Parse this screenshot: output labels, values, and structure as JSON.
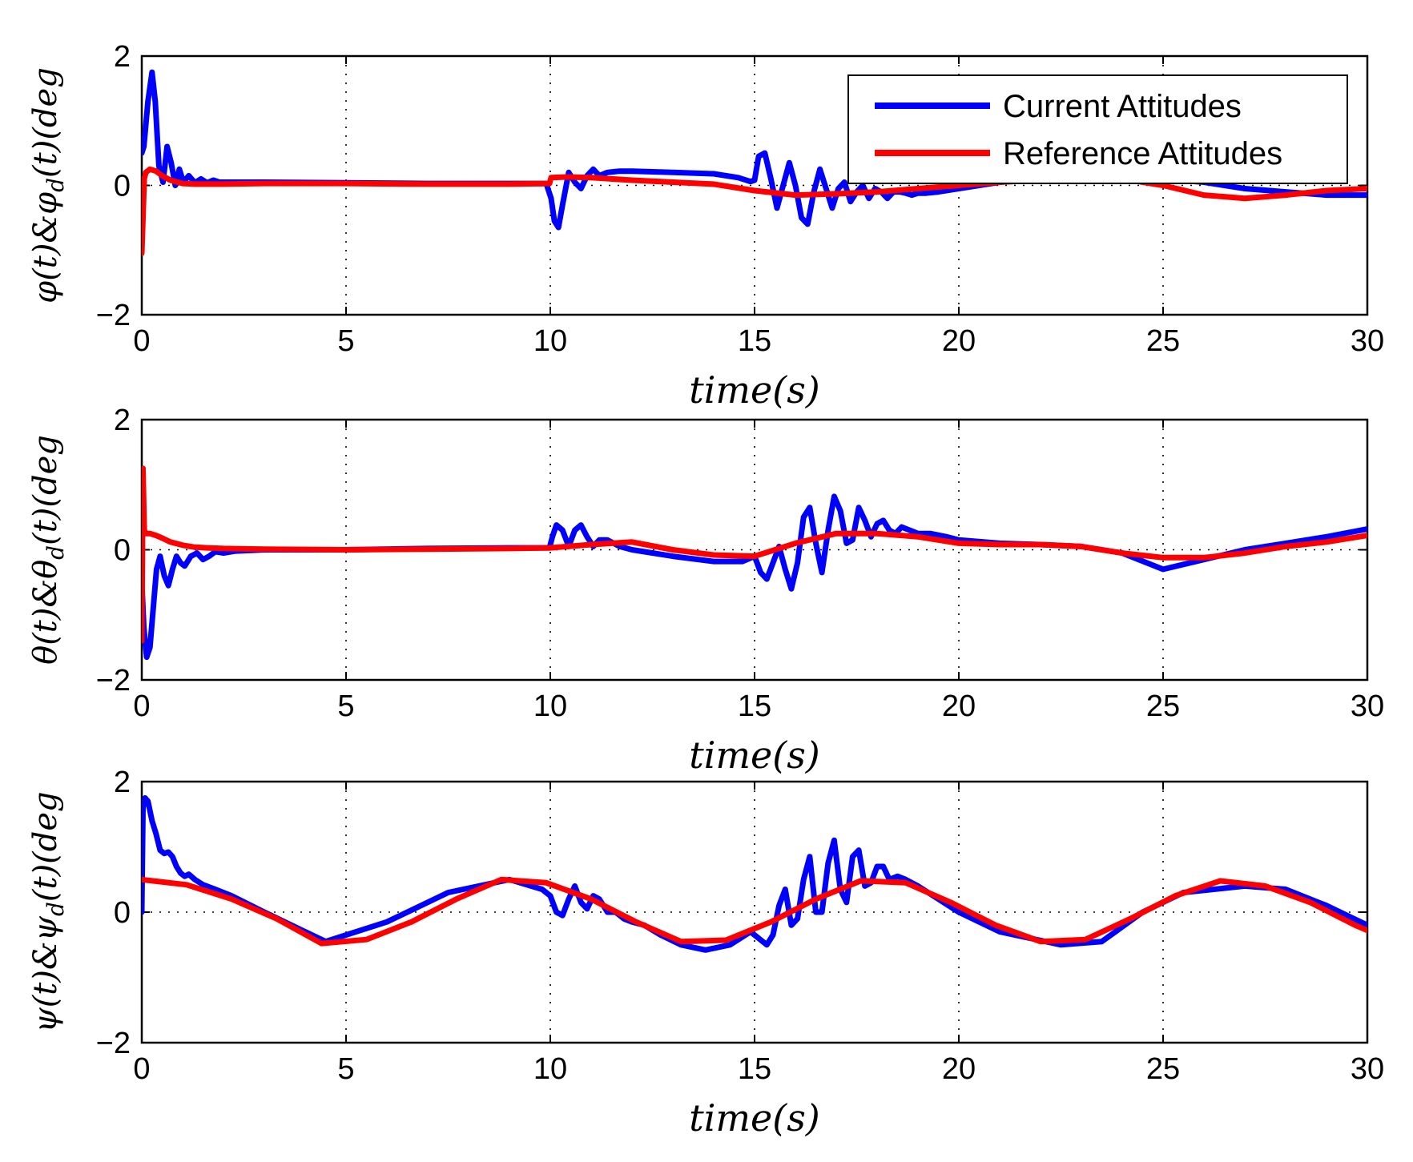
{
  "colors": {
    "current": "#0000ff",
    "reference": "#ff0000"
  },
  "legend": {
    "placement": "top-right",
    "entries": [
      "Current Attitudes",
      "Reference Attitudes"
    ]
  },
  "chart_data": [
    {
      "type": "line",
      "ylabel": "φ(t)&φ_d(t)(deg)",
      "ylabel_main": "φ(t)&φ",
      "ylabel_sub": "d",
      "ylabel_tail": "(t)(deg",
      "xlabel": "time(s)",
      "xlim": [
        0,
        30
      ],
      "ylim": [
        -2,
        2
      ],
      "xticks": [
        0,
        5,
        10,
        15,
        20,
        25,
        30
      ],
      "xtick_labels": [
        "0",
        "5",
        "10",
        "15",
        "20",
        "25",
        "30"
      ],
      "yticks": [
        -2,
        0,
        2
      ],
      "ytick_labels": [
        "−2",
        "0",
        "2"
      ],
      "series": [
        {
          "name": "Current Attitudes",
          "color": "#0000ff",
          "x": [
            0,
            0.05,
            0.15,
            0.25,
            0.33,
            0.42,
            0.52,
            0.62,
            0.72,
            0.82,
            0.92,
            1.02,
            1.15,
            1.3,
            1.45,
            1.6,
            1.75,
            1.9,
            2.1,
            2.4,
            3,
            5,
            7,
            9,
            9.9,
            10.02,
            10.1,
            10.2,
            10.3,
            10.45,
            10.6,
            10.75,
            10.9,
            11.05,
            11.2,
            11.4,
            11.7,
            12,
            13,
            14,
            14.6,
            14.9,
            15.0,
            15.1,
            15.25,
            15.4,
            15.55,
            15.7,
            15.85,
            16.0,
            16.15,
            16.3,
            16.45,
            16.6,
            16.75,
            16.9,
            17.05,
            17.2,
            17.35,
            17.5,
            17.65,
            17.8,
            17.95,
            18.1,
            18.25,
            18.4,
            18.55,
            18.7,
            18.85,
            19.0,
            19.2,
            19.5,
            20,
            21,
            22,
            23,
            24,
            25,
            26,
            27,
            28,
            29,
            30
          ],
          "values": [
            0.5,
            0.6,
            1.3,
            1.75,
            1.3,
            0.3,
            0.05,
            0.6,
            0.35,
            0.0,
            0.25,
            0.05,
            0.15,
            0.04,
            0.1,
            0.04,
            0.08,
            0.05,
            0.05,
            0.05,
            0.05,
            0.04,
            0.03,
            0.03,
            0.03,
            -0.2,
            -0.55,
            -0.65,
            -0.3,
            0.2,
            0.05,
            -0.05,
            0.15,
            0.25,
            0.15,
            0.2,
            0.22,
            0.22,
            0.2,
            0.18,
            0.12,
            0.06,
            0.08,
            0.45,
            0.5,
            0.1,
            -0.35,
            0.0,
            0.35,
            0.0,
            -0.5,
            -0.6,
            -0.1,
            0.25,
            -0.05,
            -0.35,
            -0.05,
            0.05,
            -0.25,
            -0.1,
            0.0,
            -0.2,
            -0.05,
            -0.1,
            -0.2,
            -0.1,
            -0.1,
            -0.12,
            -0.15,
            -0.12,
            -0.12,
            -0.1,
            -0.05,
            0.05,
            0.1,
            0.12,
            0.12,
            0.1,
            0.05,
            -0.05,
            -0.1,
            -0.15,
            -0.15
          ]
        },
        {
          "name": "Reference Attitudes",
          "color": "#ff0000",
          "x": [
            0,
            0.03,
            0.06,
            0.1,
            0.2,
            0.35,
            0.5,
            0.7,
            1.0,
            1.3,
            1.6,
            2,
            3,
            5,
            7,
            9,
            9.98,
            10.02,
            10.4,
            11,
            12,
            13,
            14,
            15,
            16,
            17,
            18,
            19,
            20,
            21,
            22,
            23,
            24,
            25,
            26,
            27,
            28,
            29,
            30
          ],
          "values": [
            -1.05,
            -0.5,
            0.1,
            0.2,
            0.25,
            0.22,
            0.15,
            0.08,
            0.03,
            0.02,
            0.02,
            0.02,
            0.03,
            0.03,
            0.02,
            0.02,
            0.03,
            0.12,
            0.13,
            0.12,
            0.08,
            0.05,
            0.02,
            -0.08,
            -0.15,
            -0.13,
            -0.1,
            -0.05,
            0.0,
            0.05,
            0.08,
            0.1,
            0.1,
            0.0,
            -0.15,
            -0.2,
            -0.15,
            -0.08,
            -0.05
          ]
        }
      ]
    },
    {
      "type": "line",
      "ylabel": "θ(t)&θ_d(t)(deg)",
      "ylabel_main": "θ(t)&θ",
      "ylabel_sub": "d",
      "ylabel_tail": "(t)(deg",
      "xlabel": "time(s)",
      "xlim": [
        0,
        30
      ],
      "ylim": [
        -2,
        2
      ],
      "xticks": [
        0,
        5,
        10,
        15,
        20,
        25,
        30
      ],
      "xtick_labels": [
        "0",
        "5",
        "10",
        "15",
        "20",
        "25",
        "30"
      ],
      "yticks": [
        -2,
        0,
        2
      ],
      "ytick_labels": [
        "−2",
        "0",
        "2"
      ],
      "series": [
        {
          "name": "Current Attitudes",
          "color": "#0000ff",
          "x": [
            0,
            0.05,
            0.12,
            0.2,
            0.28,
            0.36,
            0.45,
            0.55,
            0.65,
            0.75,
            0.85,
            0.95,
            1.05,
            1.2,
            1.35,
            1.5,
            1.65,
            1.8,
            2.0,
            2.3,
            3,
            5,
            7,
            9,
            9.98,
            10.05,
            10.15,
            10.3,
            10.45,
            10.6,
            10.75,
            10.9,
            11.05,
            11.2,
            11.4,
            11.7,
            12,
            13,
            14,
            14.7,
            15.0,
            15.15,
            15.3,
            15.45,
            15.6,
            15.75,
            15.9,
            16.05,
            16.2,
            16.35,
            16.5,
            16.65,
            16.8,
            16.95,
            17.1,
            17.25,
            17.4,
            17.55,
            17.7,
            17.85,
            18.0,
            18.15,
            18.3,
            18.45,
            18.6,
            18.8,
            19.0,
            19.3,
            19.7,
            20,
            21,
            22,
            23,
            24,
            25,
            26,
            27,
            28,
            29,
            30
          ],
          "values": [
            -0.5,
            -1.2,
            -1.65,
            -1.5,
            -0.9,
            -0.3,
            -0.1,
            -0.4,
            -0.55,
            -0.3,
            -0.1,
            -0.2,
            -0.25,
            -0.1,
            -0.05,
            -0.15,
            -0.1,
            -0.03,
            -0.05,
            -0.02,
            0.0,
            0.0,
            0.02,
            0.03,
            0.03,
            0.2,
            0.38,
            0.3,
            0.05,
            0.3,
            0.38,
            0.2,
            0.05,
            0.15,
            0.15,
            0.05,
            0.0,
            -0.1,
            -0.18,
            -0.18,
            -0.1,
            -0.35,
            -0.45,
            -0.2,
            0.05,
            -0.3,
            -0.6,
            -0.2,
            0.5,
            0.65,
            0.1,
            -0.35,
            0.3,
            0.82,
            0.6,
            0.1,
            0.15,
            0.65,
            0.45,
            0.2,
            0.4,
            0.45,
            0.3,
            0.25,
            0.35,
            0.3,
            0.25,
            0.25,
            0.2,
            0.15,
            0.1,
            0.08,
            0.05,
            -0.05,
            -0.3,
            -0.15,
            0.0,
            0.1,
            0.2,
            0.32
          ]
        },
        {
          "name": "Reference Attitudes",
          "color": "#ff0000",
          "x": [
            0,
            0.03,
            0.06,
            0.1,
            0.2,
            0.35,
            0.5,
            0.7,
            1.0,
            1.3,
            1.6,
            2,
            3,
            5,
            7,
            9,
            10,
            11,
            12,
            13,
            14,
            15,
            16,
            17,
            18,
            19,
            20,
            21,
            22,
            23,
            24,
            25,
            26,
            27,
            28,
            29,
            30
          ],
          "values": [
            -1.4,
            1.25,
            0.3,
            0.25,
            0.25,
            0.22,
            0.18,
            0.12,
            0.07,
            0.04,
            0.03,
            0.02,
            0.01,
            0.0,
            0.01,
            0.02,
            0.03,
            0.08,
            0.12,
            0.0,
            -0.08,
            -0.1,
            0.1,
            0.25,
            0.25,
            0.2,
            0.1,
            0.08,
            0.08,
            0.05,
            -0.05,
            -0.12,
            -0.12,
            -0.05,
            0.05,
            0.12,
            0.22
          ]
        }
      ]
    },
    {
      "type": "line",
      "ylabel": "ψ(t)&ψ_d(t)(deg)",
      "ylabel_main": "ψ(t)&ψ",
      "ylabel_sub": "d",
      "ylabel_tail": "(t)(deg",
      "xlabel": "time(s)",
      "xlim": [
        0,
        30
      ],
      "ylim": [
        -2,
        2
      ],
      "xticks": [
        0,
        5,
        10,
        15,
        20,
        25,
        30
      ],
      "xtick_labels": [
        "0",
        "5",
        "10",
        "15",
        "20",
        "25",
        "30"
      ],
      "yticks": [
        -2,
        0,
        2
      ],
      "ytick_labels": [
        "−2",
        "0",
        "2"
      ],
      "series": [
        {
          "name": "Current Attitudes",
          "color": "#0000ff",
          "x": [
            0,
            0.03,
            0.08,
            0.15,
            0.25,
            0.35,
            0.45,
            0.55,
            0.65,
            0.75,
            0.85,
            0.95,
            1.05,
            1.15,
            1.3,
            1.5,
            1.8,
            2.2,
            3,
            4.5,
            6,
            7.5,
            9,
            9.8,
            10.0,
            10.15,
            10.3,
            10.45,
            10.6,
            10.75,
            10.9,
            11.05,
            11.2,
            11.4,
            11.6,
            11.8,
            12.0,
            12.3,
            12.7,
            13.2,
            13.8,
            14.4,
            14.9,
            15.1,
            15.3,
            15.45,
            15.6,
            15.75,
            15.9,
            16.05,
            16.2,
            16.35,
            16.5,
            16.65,
            16.8,
            16.95,
            17.1,
            17.25,
            17.4,
            17.55,
            17.7,
            17.85,
            18.0,
            18.15,
            18.3,
            18.5,
            18.7,
            19.0,
            19.5,
            20,
            21,
            22.5,
            23.5,
            24.5,
            25.5,
            27,
            28,
            29,
            30
          ],
          "values": [
            0.0,
            1.6,
            1.75,
            1.7,
            1.4,
            1.2,
            0.95,
            0.9,
            0.92,
            0.85,
            0.7,
            0.6,
            0.55,
            0.58,
            0.5,
            0.42,
            0.35,
            0.25,
            0.0,
            -0.45,
            -0.15,
            0.3,
            0.5,
            0.35,
            0.25,
            -0.0,
            -0.05,
            0.2,
            0.4,
            0.15,
            0.05,
            0.25,
            0.2,
            0.0,
            0.0,
            -0.1,
            -0.15,
            -0.2,
            -0.35,
            -0.5,
            -0.58,
            -0.5,
            -0.3,
            -0.4,
            -0.5,
            -0.35,
            0.1,
            0.35,
            -0.2,
            -0.1,
            0.5,
            0.85,
            0.0,
            0.0,
            0.75,
            1.1,
            0.35,
            0.15,
            0.85,
            0.95,
            0.4,
            0.45,
            0.7,
            0.7,
            0.5,
            0.55,
            0.5,
            0.4,
            0.2,
            0.0,
            -0.3,
            -0.5,
            -0.45,
            0.0,
            0.3,
            0.4,
            0.35,
            0.1,
            -0.2
          ]
        },
        {
          "name": "Reference Attitudes",
          "color": "#ff0000",
          "x": [
            0,
            1.1,
            2.2,
            3.3,
            4.4,
            5.5,
            6.6,
            7.7,
            8.8,
            9.9,
            11.0,
            12.1,
            13.2,
            14.3,
            15.4,
            16.5,
            17.6,
            18.7,
            19.8,
            20.9,
            22.0,
            23.1,
            24.2,
            25.3,
            26.4,
            27.5,
            28.6,
            29.7,
            30
          ],
          "values": [
            0.5,
            0.42,
            0.2,
            -0.1,
            -0.48,
            -0.42,
            -0.15,
            0.2,
            0.5,
            0.45,
            0.2,
            -0.15,
            -0.45,
            -0.43,
            -0.15,
            0.2,
            0.48,
            0.45,
            0.15,
            -0.2,
            -0.45,
            -0.42,
            -0.1,
            0.25,
            0.48,
            0.4,
            0.15,
            -0.2,
            -0.28
          ]
        }
      ]
    }
  ]
}
